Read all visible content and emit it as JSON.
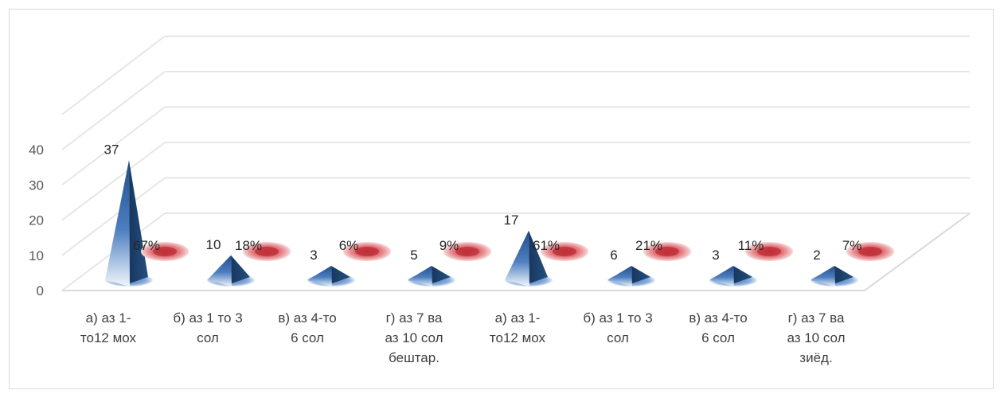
{
  "chart_data": {
    "type": "bar",
    "subtype": "3d-cone",
    "title": "",
    "xlabel": "",
    "ylabel": "",
    "ylim": [
      0,
      40
    ],
    "y_ticks": [
      0,
      10,
      20,
      30,
      40
    ],
    "grid": true,
    "legend": "none",
    "categories": [
      "а) аз 1-то12 мох",
      "б) аз 1 то 3 сол",
      "в) аз 4-то 6 сол",
      "г) аз 7 ва аз 10 сол бештар.",
      "а) аз 1-то12 мох",
      "б) аз 1 то 3 сол",
      "в) аз 4-то 6 сол",
      "г) аз 7 ва аз 10 сол зиёд."
    ],
    "category_lines": [
      [
        "а) аз 1-",
        "то12 мох"
      ],
      [
        "б) аз 1 то 3",
        "сол"
      ],
      [
        "в)  аз 4-то",
        "6 сол"
      ],
      [
        "г) аз 7 ва",
        "аз  10 сол",
        "бештар."
      ],
      [
        "а) аз 1-",
        "то12 мох"
      ],
      [
        "б) аз 1 то 3",
        "сол"
      ],
      [
        "в)  аз 4-то",
        "6 сол"
      ],
      [
        "г) аз 7 ва",
        "аз 10 сол",
        "зиёд."
      ]
    ],
    "series": [
      {
        "values": [
          37,
          10,
          3,
          5,
          17,
          6,
          3,
          2
        ],
        "labels": [
          "37",
          "10",
          "3",
          "5",
          "17",
          "6",
          "3",
          "2"
        ],
        "color": "#2e5f9e"
      },
      {
        "values": [
          0.67,
          0.18,
          0.06,
          0.09,
          0.61,
          0.21,
          0.11,
          0.07
        ],
        "labels": [
          "67%",
          "18%",
          "6%",
          "9%",
          "61%",
          "21%",
          "11%",
          "7%"
        ],
        "color": "#c0343c"
      }
    ]
  }
}
